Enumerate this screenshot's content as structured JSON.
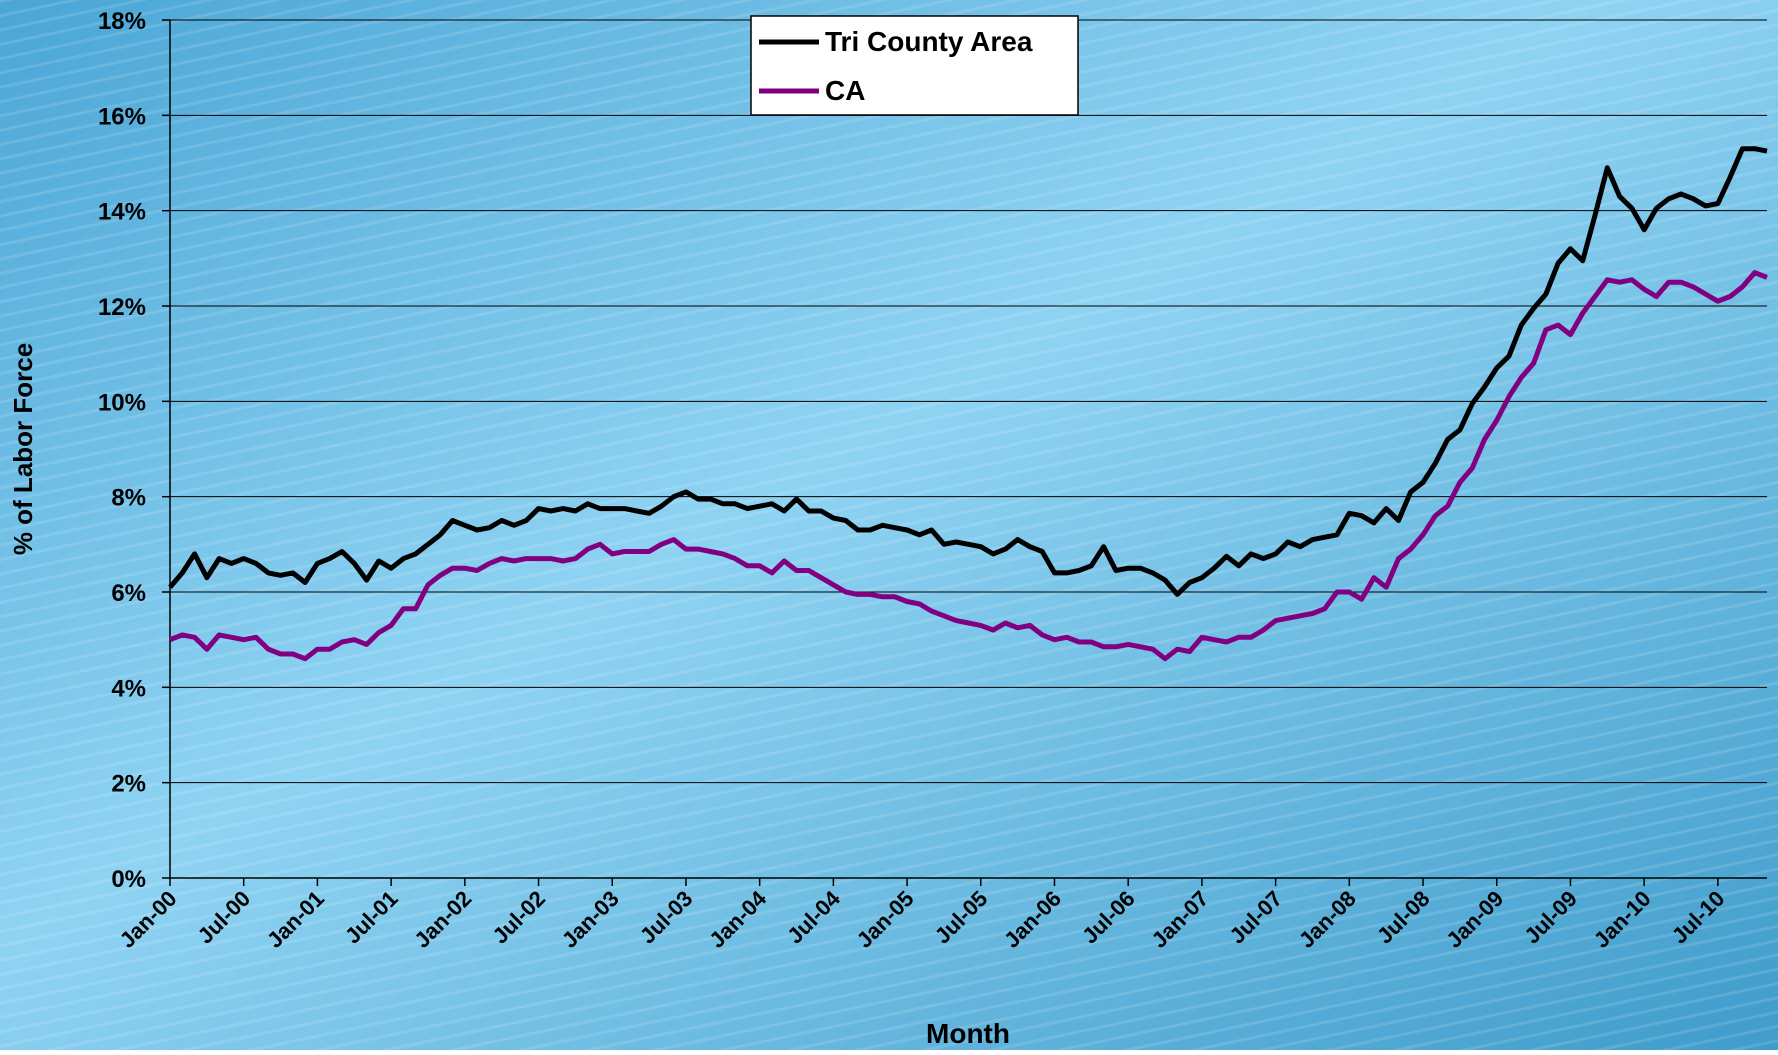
{
  "chart_data": {
    "type": "line",
    "y_label": "% of Labor Force",
    "x_label": "Month",
    "categories": [
      "Jan-00",
      null,
      null,
      null,
      null,
      null,
      "Jul-00",
      null,
      null,
      null,
      null,
      null,
      "Jan-01",
      null,
      null,
      null,
      null,
      null,
      "Jul-01",
      null,
      null,
      null,
      null,
      null,
      "Jan-02",
      null,
      null,
      null,
      null,
      null,
      "Jul-02",
      null,
      null,
      null,
      null,
      null,
      "Jan-03",
      null,
      null,
      null,
      null,
      null,
      "Jul-03",
      null,
      null,
      null,
      null,
      null,
      "Jan-04",
      null,
      null,
      null,
      null,
      null,
      "Jul-04",
      null,
      null,
      null,
      null,
      null,
      "Jan-05",
      null,
      null,
      null,
      null,
      null,
      "Jul-05",
      null,
      null,
      null,
      null,
      null,
      "Jan-06",
      null,
      null,
      null,
      null,
      null,
      "Jul-06",
      null,
      null,
      null,
      null,
      null,
      "Jan-07",
      null,
      null,
      null,
      null,
      null,
      "Jul-07",
      null,
      null,
      null,
      null,
      null,
      "Jan-08",
      null,
      null,
      null,
      null,
      null,
      "Jul-08",
      null,
      null,
      null,
      null,
      null,
      "Jan-09",
      null,
      null,
      null,
      null,
      null,
      "Jul-09",
      null,
      null,
      null,
      null,
      null,
      "Jan-10",
      null,
      null,
      null,
      null,
      null,
      "Jul-10",
      null,
      null,
      null,
      null
    ],
    "series": [
      {
        "name": "Tri County Area",
        "color": "#000000",
        "values": [
          6.1,
          6.4,
          6.8,
          6.3,
          6.7,
          6.6,
          6.7,
          6.6,
          6.4,
          6.35,
          6.4,
          6.2,
          6.6,
          6.7,
          6.85,
          6.6,
          6.25,
          6.65,
          6.5,
          6.7,
          6.8,
          7.0,
          7.2,
          7.5,
          7.4,
          7.3,
          7.35,
          7.5,
          7.4,
          7.5,
          7.75,
          7.7,
          7.75,
          7.7,
          7.85,
          7.75,
          7.75,
          7.75,
          7.7,
          7.65,
          7.8,
          8.0,
          8.1,
          7.95,
          7.95,
          7.85,
          7.85,
          7.75,
          7.8,
          7.85,
          7.7,
          7.95,
          7.7,
          7.7,
          7.55,
          7.5,
          7.3,
          7.3,
          7.4,
          7.35,
          7.3,
          7.2,
          7.3,
          7.0,
          7.05,
          7.0,
          6.95,
          6.8,
          6.9,
          7.1,
          6.95,
          6.85,
          6.4,
          6.4,
          6.45,
          6.55,
          6.95,
          6.45,
          6.5,
          6.5,
          6.4,
          6.25,
          5.95,
          6.2,
          6.3,
          6.5,
          6.75,
          6.55,
          6.8,
          6.7,
          6.8,
          7.05,
          6.95,
          7.1,
          7.15,
          7.2,
          7.65,
          7.6,
          7.45,
          7.75,
          7.5,
          8.1,
          8.3,
          8.7,
          9.2,
          9.4,
          9.95,
          10.3,
          10.7,
          10.95,
          11.6,
          11.95,
          12.25,
          12.9,
          13.2,
          12.95,
          13.9,
          14.9,
          14.3,
          14.05,
          13.6,
          14.05,
          14.25,
          14.35,
          14.25,
          14.1,
          14.15,
          14.7,
          15.3,
          15.3,
          15.25
        ]
      },
      {
        "name": "CA",
        "color": "#800080",
        "values": [
          5.0,
          5.1,
          5.05,
          4.8,
          5.1,
          5.05,
          5.0,
          5.05,
          4.8,
          4.7,
          4.7,
          4.6,
          4.8,
          4.8,
          4.95,
          5.0,
          4.9,
          5.15,
          5.3,
          5.65,
          5.65,
          6.15,
          6.35,
          6.5,
          6.5,
          6.45,
          6.6,
          6.7,
          6.65,
          6.7,
          6.7,
          6.7,
          6.65,
          6.7,
          6.9,
          7.0,
          6.8,
          6.85,
          6.85,
          6.85,
          7.0,
          7.1,
          6.9,
          6.9,
          6.85,
          6.8,
          6.7,
          6.55,
          6.55,
          6.4,
          6.65,
          6.45,
          6.45,
          6.3,
          6.15,
          6.0,
          5.95,
          5.95,
          5.9,
          5.9,
          5.8,
          5.75,
          5.6,
          5.5,
          5.4,
          5.35,
          5.3,
          5.2,
          5.35,
          5.25,
          5.3,
          5.1,
          5.0,
          5.05,
          4.95,
          4.95,
          4.85,
          4.85,
          4.9,
          4.85,
          4.8,
          4.6,
          4.8,
          4.75,
          5.05,
          5.0,
          4.95,
          5.05,
          5.05,
          5.2,
          5.4,
          5.45,
          5.5,
          5.55,
          5.65,
          6.0,
          6.0,
          5.85,
          6.3,
          6.1,
          6.7,
          6.9,
          7.2,
          7.6,
          7.8,
          8.3,
          8.6,
          9.2,
          9.6,
          10.1,
          10.5,
          10.8,
          11.5,
          11.6,
          11.4,
          11.85,
          12.2,
          12.55,
          12.5,
          12.55,
          12.35,
          12.2,
          12.5,
          12.5,
          12.4,
          12.25,
          12.1,
          12.2,
          12.4,
          12.7,
          12.6
        ]
      }
    ],
    "ylim": [
      0,
      18
    ],
    "yticks": [
      {
        "value": 0,
        "label": "0%"
      },
      {
        "value": 2,
        "label": "2%"
      },
      {
        "value": 4,
        "label": "4%"
      },
      {
        "value": 6,
        "label": "6%"
      },
      {
        "value": 8,
        "label": "8%"
      },
      {
        "value": 10,
        "label": "10%"
      },
      {
        "value": 12,
        "label": "12%"
      },
      {
        "value": 14,
        "label": "14%"
      },
      {
        "value": 16,
        "label": "16%"
      },
      {
        "value": 18,
        "label": "18%"
      }
    ],
    "grid": true,
    "legend": "top"
  }
}
